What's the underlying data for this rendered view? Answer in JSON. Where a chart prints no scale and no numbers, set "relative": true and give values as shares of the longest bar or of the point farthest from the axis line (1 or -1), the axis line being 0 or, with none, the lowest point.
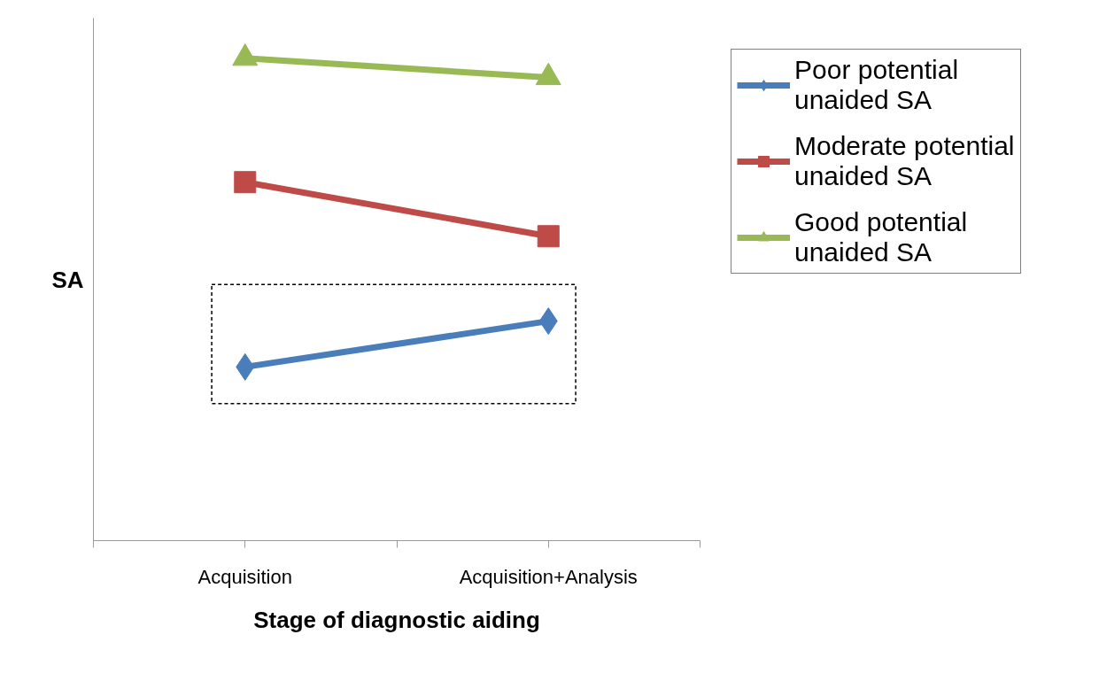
{
  "chart_data": {
    "type": "line",
    "relative": true,
    "xlabel": "Stage of diagnostic aiding",
    "ylabel": "SA",
    "categories": [
      "Acquisition",
      "Acquisition+Analysis"
    ],
    "series": [
      {
        "name": "Poor potential unaided SA",
        "color": "#4a7ebb",
        "marker": "diamond",
        "values": [
          0.36,
          0.455
        ]
      },
      {
        "name": "Moderate potential unaided SA",
        "color": "#be4b48",
        "marker": "square",
        "values": [
          0.743,
          0.631
        ]
      },
      {
        "name": "Good potential unaided SA",
        "color": "#98b954",
        "marker": "triangle",
        "values": [
          1,
          0.96
        ]
      }
    ],
    "legend": "top right",
    "grid": false,
    "tick_labels": "x",
    "line_style": "solid"
  }
}
